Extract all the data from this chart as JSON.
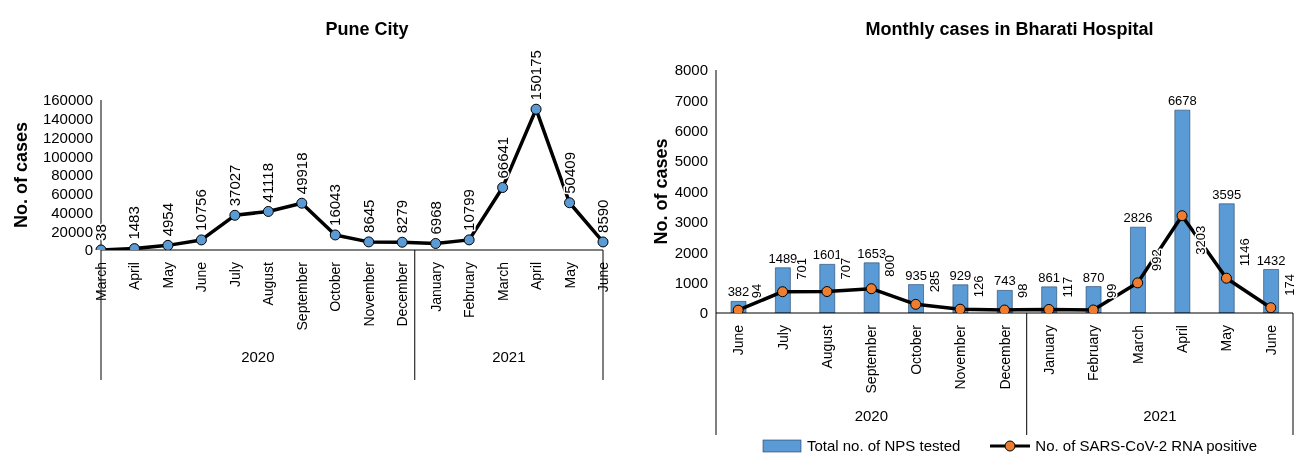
{
  "chart_data": [
    {
      "type": "line",
      "title": "Pune City",
      "ylabel": "No. of cases",
      "categories": [
        "March",
        "April",
        "May",
        "June",
        "July",
        "August",
        "September",
        "October",
        "November",
        "December",
        "January",
        "February",
        "March",
        "April",
        "May",
        "June"
      ],
      "series": [
        {
          "color": "#000000",
          "values": [
            38,
            1483,
            4954,
            10756,
            37027,
            41118,
            49918,
            16043,
            8645,
            8279,
            6968,
            10799,
            66641,
            150175,
            50409,
            8590
          ]
        }
      ],
      "ylim": [
        0,
        160000
      ],
      "yticks": [
        0,
        20000,
        40000,
        60000,
        80000,
        100000,
        120000,
        140000,
        160000
      ],
      "marker": "circle",
      "data_labels": true,
      "grid": false,
      "annotations": [
        "2020",
        "2021"
      ]
    },
    {
      "type": "bar",
      "title": "Monthly cases in Bharati Hospital",
      "ylabel": "No. of cases",
      "categories": [
        "June",
        "July",
        "August",
        "September",
        "October",
        "November",
        "December",
        "January",
        "February",
        "March",
        "April",
        "May",
        "June"
      ],
      "series": [
        {
          "name": "Total no. of NPS tested",
          "color": "#5b9bd5",
          "values": [
            382,
            1489,
            1601,
            1653,
            935,
            929,
            743,
            861,
            870,
            2826,
            6678,
            3595,
            1432
          ]
        },
        {
          "name": "No. of SARS-CoV-2 RNA positive",
          "type": "line",
          "color": "#000000",
          "values": [
            94,
            701,
            707,
            800,
            285,
            126,
            98,
            117,
            99,
            992,
            3203,
            1146,
            174
          ]
        }
      ],
      "ylim": [
        0,
        8000
      ],
      "yticks": [
        0,
        1000,
        2000,
        3000,
        4000,
        5000,
        6000,
        7000,
        8000
      ],
      "marker": "circle",
      "data_labels": true,
      "grid": false,
      "legend": "bottom",
      "annotations": [
        "2020",
        "2021"
      ]
    }
  ]
}
